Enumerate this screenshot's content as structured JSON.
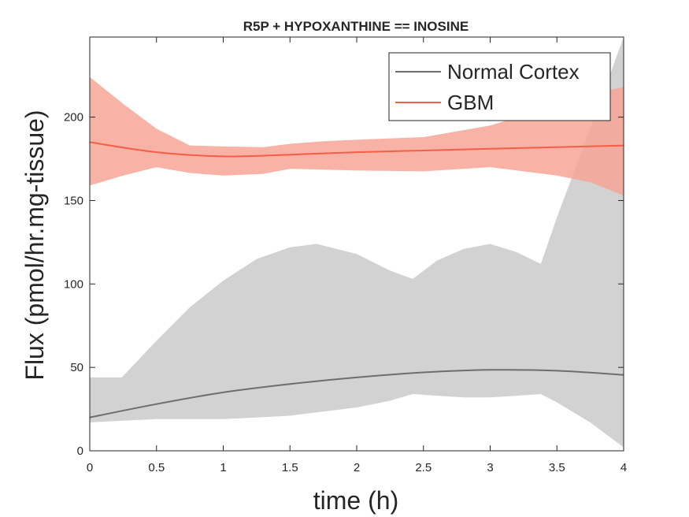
{
  "chart_data": {
    "type": "line",
    "title": "R5P + HYPOXANTHINE == INOSINE",
    "xlabel": "time (h)",
    "ylabel": "Flux (pmol/hr.mg-tissue)",
    "xlim": [
      0,
      4
    ],
    "ylim": [
      0,
      248
    ],
    "xticks": [
      0,
      0.5,
      1,
      1.5,
      2,
      2.5,
      3,
      3.5,
      4
    ],
    "xtick_labels": [
      "0",
      "0.5",
      "1",
      "1.5",
      "2",
      "2.5",
      "3",
      "3.5",
      "4"
    ],
    "yticks": [
      0,
      50,
      100,
      150,
      200
    ],
    "ytick_labels": [
      "0",
      "50",
      "100",
      "150",
      "200"
    ],
    "grid": false,
    "legend_position": "top-right",
    "series": [
      {
        "name": "Normal Cortex",
        "color": "#6e6e6e",
        "band_color": "#d2d2d2",
        "x": [
          0,
          0.5,
          1,
          1.5,
          2,
          2.5,
          3,
          3.5,
          4
        ],
        "values": [
          20,
          28,
          35,
          40,
          44,
          47,
          48.5,
          48,
          45.5
        ],
        "band_x": [
          0,
          0.24,
          0.5,
          0.75,
          1,
          1.25,
          1.5,
          1.7,
          2,
          2.25,
          2.42,
          2.6,
          2.8,
          3,
          3.2,
          3.38,
          3.5,
          3.75,
          4
        ],
        "band_upper": [
          44,
          44,
          66,
          86,
          102,
          115,
          122,
          124,
          118,
          108,
          103,
          114,
          121,
          124,
          119,
          112,
          140,
          193,
          248
        ],
        "band_lower": [
          17,
          18,
          19,
          19,
          19,
          20,
          21,
          23,
          26,
          30,
          34,
          33,
          32,
          32,
          33,
          34,
          29,
          17,
          2
        ]
      },
      {
        "name": "GBM",
        "color": "#f46046",
        "band_color": "#f7a697",
        "x": [
          0,
          0.5,
          1,
          1.5,
          2,
          2.5,
          3,
          3.5,
          4
        ],
        "values": [
          185,
          179,
          176.5,
          177.5,
          179,
          180,
          181,
          182,
          183
        ],
        "band_x": [
          0,
          0.25,
          0.5,
          0.75,
          1,
          1.3,
          1.5,
          1.75,
          2,
          2.5,
          3,
          3.5,
          3.75,
          4
        ],
        "band_upper": [
          224,
          208,
          193,
          183,
          182.5,
          182,
          184,
          185.5,
          186.5,
          188,
          195,
          207,
          214,
          218
        ],
        "band_lower": [
          159,
          165,
          170,
          166.5,
          165,
          166,
          169,
          168.5,
          168,
          167.5,
          170,
          165,
          161,
          153
        ]
      }
    ]
  }
}
